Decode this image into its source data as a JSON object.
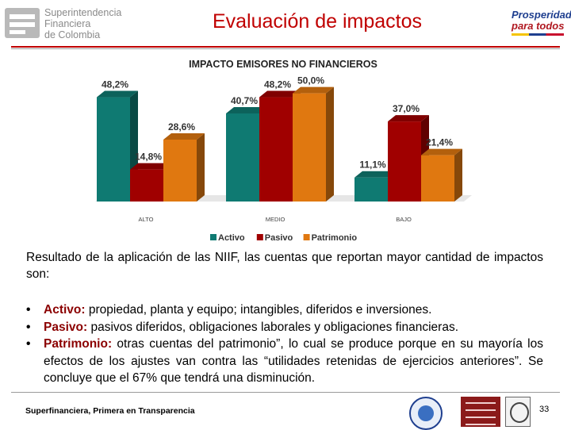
{
  "header": {
    "logo_line1": "Superintendencia",
    "logo_line2": "Financiera",
    "logo_line3": "de Colombia",
    "title": "Evaluación de impactos",
    "right_logo_line1": "Prosperidad",
    "right_logo_line2": "para todos"
  },
  "chart_data": {
    "type": "bar",
    "title": "IMPACTO  EMISORES NO FINANCIEROS",
    "categories": [
      "ALTO",
      "MEDIO",
      "BAJO"
    ],
    "series": [
      {
        "name": "Activo",
        "values": [
          48.2,
          40.7,
          11.1
        ],
        "labels": [
          "48,2%",
          "40,7%",
          "11,1%"
        ],
        "color": "#0f7a72"
      },
      {
        "name": "Pasivo",
        "values": [
          14.8,
          48.2,
          37.0
        ],
        "labels": [
          "14,8%",
          "48,2%",
          "37,0%"
        ],
        "color": "#a00000"
      },
      {
        "name": "Patrimonio",
        "values": [
          28.6,
          50.0,
          21.4
        ],
        "labels": [
          "28,6%",
          "50,0%",
          "21,4%"
        ],
        "color": "#e07810"
      }
    ],
    "ylim": [
      0,
      55
    ],
    "legend": "bottom",
    "grid": false,
    "style": "3d"
  },
  "body": {
    "paragraph": "Resultado de la aplicación de las NIIF, las cuentas que reportan mayor cantidad de impactos son:",
    "bullets": [
      {
        "keyword": "Activo:",
        "text": " propiedad, planta y equipo; intangibles, diferidos e inversiones."
      },
      {
        "keyword": "Pasivo:",
        "text": "  pasivos diferidos, obligaciones laborales y obligaciones financieras."
      },
      {
        "keyword": "Patrimonio:",
        "text": " otras cuentas del patrimonio”, lo cual se produce porque en su mayoría los efectos de los ajustes van contra las “utilidades retenidas de ejercicios anteriores”. Se concluye  que el 67% que tendrá una disminución."
      }
    ],
    "bullet_symbol": "•"
  },
  "footer": {
    "text": "Superfinanciera, Primera en Transparencia",
    "page_number": "33"
  }
}
